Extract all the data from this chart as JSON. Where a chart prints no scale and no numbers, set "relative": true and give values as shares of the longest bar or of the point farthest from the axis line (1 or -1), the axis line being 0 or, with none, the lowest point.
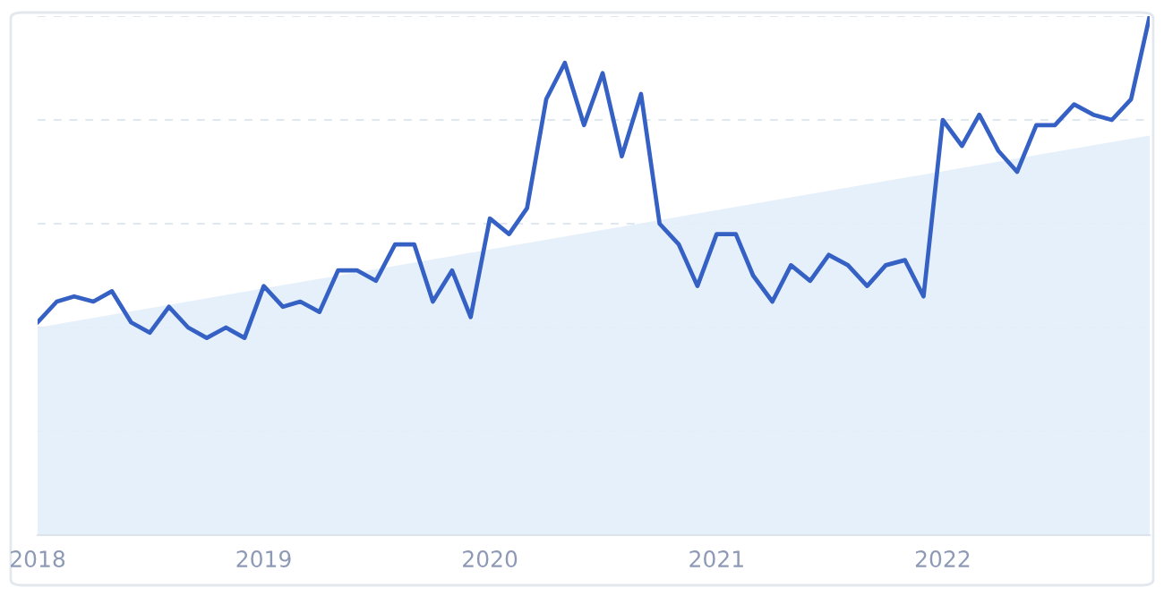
{
  "chart_data": {
    "type": "line",
    "relative": true,
    "x": [
      "2018-01",
      "2018-02",
      "2018-03",
      "2018-04",
      "2018-05",
      "2018-06",
      "2018-07",
      "2018-08",
      "2018-09",
      "2018-10",
      "2018-11",
      "2018-12",
      "2019-01",
      "2019-02",
      "2019-03",
      "2019-04",
      "2019-05",
      "2019-06",
      "2019-07",
      "2019-08",
      "2019-09",
      "2019-10",
      "2019-11",
      "2019-12",
      "2020-01",
      "2020-02",
      "2020-03",
      "2020-04",
      "2020-05",
      "2020-06",
      "2020-07",
      "2020-08",
      "2020-09",
      "2020-10",
      "2020-11",
      "2020-12",
      "2021-01",
      "2021-02",
      "2021-03",
      "2021-04",
      "2021-05",
      "2021-06",
      "2021-07",
      "2021-08",
      "2021-09",
      "2021-10",
      "2021-11",
      "2021-12",
      "2022-01",
      "2022-02",
      "2022-03",
      "2022-04",
      "2022-05",
      "2022-06",
      "2022-07",
      "2022-08",
      "2022-09",
      "2022-10",
      "2022-11",
      "2022-12"
    ],
    "series": [
      {
        "type": "area",
        "color": "#e3eefb",
        "x": [
          "2018-01",
          "2022-12"
        ],
        "values": [
          0.4,
          0.77
        ]
      },
      {
        "color": "#3560c4",
        "values": [
          0.41,
          0.45,
          0.46,
          0.45,
          0.47,
          0.41,
          0.39,
          0.44,
          0.4,
          0.38,
          0.4,
          0.38,
          0.48,
          0.44,
          0.45,
          0.43,
          0.51,
          0.51,
          0.49,
          0.56,
          0.56,
          0.45,
          0.51,
          0.42,
          0.61,
          0.58,
          0.63,
          0.84,
          0.91,
          0.79,
          0.89,
          0.73,
          0.85,
          0.6,
          0.56,
          0.48,
          0.58,
          0.58,
          0.5,
          0.45,
          0.52,
          0.49,
          0.54,
          0.52,
          0.48,
          0.52,
          0.53,
          0.46,
          0.8,
          0.75,
          0.81,
          0.74,
          0.7,
          0.79,
          0.79,
          0.83,
          0.81,
          0.8,
          0.84,
          1.0
        ]
      }
    ],
    "xlim": [
      "2018-01",
      "2022-12"
    ],
    "xticks": [
      "2018",
      "2019",
      "2020",
      "2021",
      "2022"
    ],
    "grid": "y",
    "tick_labels": "x",
    "marker": "none",
    "line_style": "solid",
    "legend": false
  }
}
